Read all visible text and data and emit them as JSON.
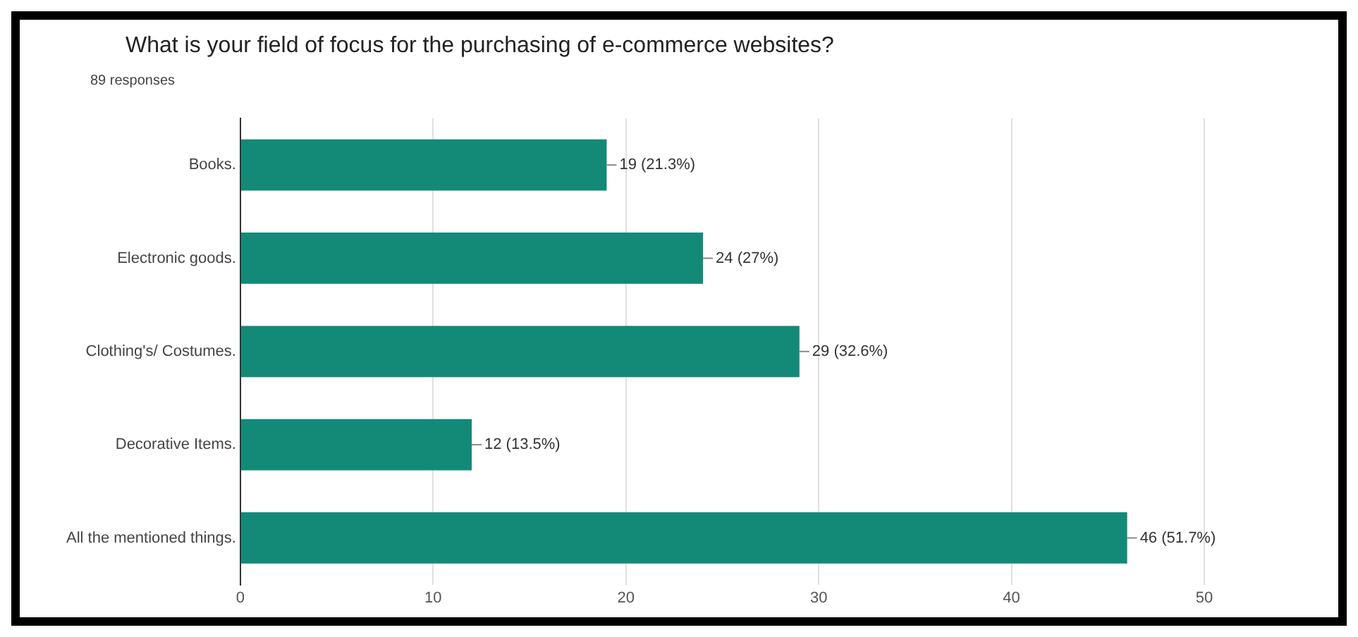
{
  "chart_data": {
    "type": "bar",
    "orientation": "horizontal",
    "title": "What is your field of focus for the purchasing of e-commerce websites?",
    "subtitle": "89 responses",
    "categories": [
      "Books.",
      "Electronic goods.",
      "Clothing's/ Costumes.",
      "Decorative Items.",
      "All the mentioned things."
    ],
    "series": [
      {
        "color": "#138a78",
        "values": [
          19,
          24,
          29,
          12,
          46
        ],
        "value_labels": [
          "19 (21.3%)",
          "24 (27%)",
          "29 (32.6%)",
          "12 (13.5%)",
          "46 (51.7%)"
        ]
      }
    ],
    "xlim": [
      0,
      50
    ],
    "xticks": [
      0,
      10,
      20,
      30,
      40,
      50
    ],
    "grid": "x",
    "legend": false
  }
}
